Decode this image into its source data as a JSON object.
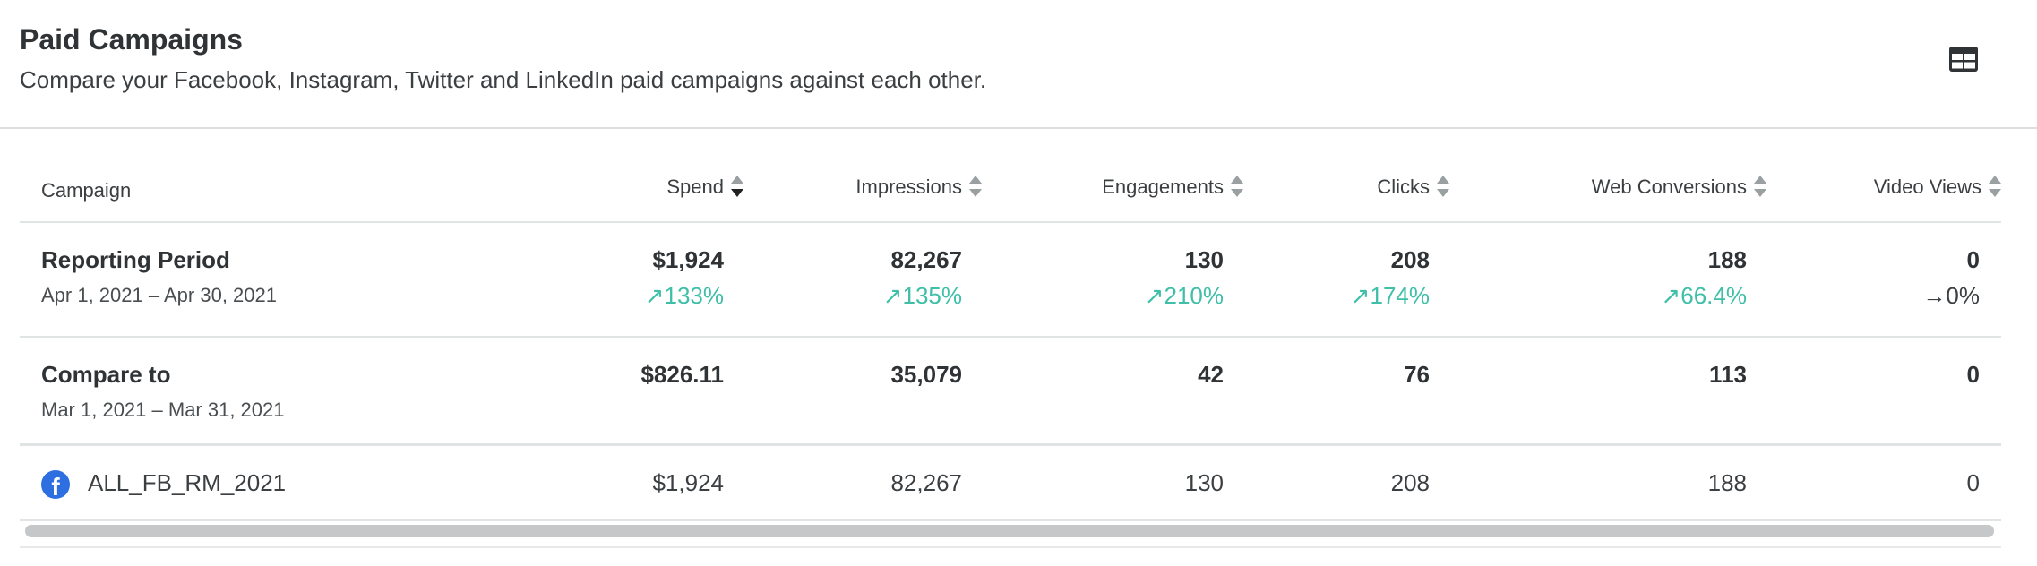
{
  "header": {
    "title": "Paid Campaigns",
    "subtitle": "Compare your Facebook, Instagram, Twitter and LinkedIn paid campaigns against each other.",
    "view_icon": "table-icon"
  },
  "columns": {
    "campaign": "Campaign",
    "spend": "Spend",
    "impressions": "Impressions",
    "engagements": "Engagements",
    "clicks": "Clicks",
    "web_conversions": "Web Conversions",
    "video_views": "Video Views"
  },
  "reporting": {
    "label": "Reporting Period",
    "range": "Apr 1, 2021 – Apr 30, 2021",
    "spend": "$1,924",
    "spend_delta": "133%",
    "impressions": "82,267",
    "impressions_delta": "135%",
    "engagements": "130",
    "engagements_delta": "210%",
    "clicks": "208",
    "clicks_delta": "174%",
    "web_conversions": "188",
    "web_conversions_delta": "66.4%",
    "video_views": "0",
    "video_views_delta": "0%"
  },
  "compare": {
    "label": "Compare to",
    "range": "Mar 1, 2021 – Mar 31, 2021",
    "spend": "$826.11",
    "impressions": "35,079",
    "engagements": "42",
    "clicks": "76",
    "web_conversions": "113",
    "video_views": "0"
  },
  "campaigns": [
    {
      "network_icon": "facebook-icon",
      "name": "ALL_FB_RM_2021",
      "spend": "$1,924",
      "impressions": "82,267",
      "engagements": "130",
      "clicks": "208",
      "web_conversions": "188",
      "video_views": "0"
    }
  ],
  "colors": {
    "positive": "#3fbfa8",
    "facebook": "#2d6fe0"
  }
}
